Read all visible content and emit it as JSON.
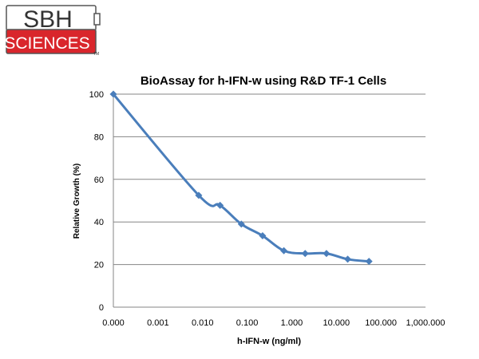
{
  "logo": {
    "line1": "SBH",
    "line2": "SCIENCES",
    "trademark": "TM",
    "brand_color": "#d9262c"
  },
  "chart_data": {
    "type": "line",
    "title": "BioAssay for h-IFN-w using R&D TF-1 Cells",
    "xlabel": "h-IFN-w (ng/ml)",
    "ylabel": "Relative Growth (%)",
    "x_scale": "log",
    "x_tick_labels": [
      "0.000",
      "0.001",
      "0.010",
      "0.100",
      "1.000",
      "10.000",
      "100.000",
      "1,000.000"
    ],
    "y_ticks": [
      0,
      20,
      40,
      60,
      80,
      100
    ],
    "ylim": [
      0,
      100
    ],
    "grid": "horizontal",
    "series": [
      {
        "color": "#4a7ebb",
        "marker": "diamond",
        "points": [
          {
            "x": 0.0001,
            "y": 100
          },
          {
            "x": 0.0082,
            "y": 52.5
          },
          {
            "x": 0.0247,
            "y": 47.8
          },
          {
            "x": 0.0741,
            "y": 39
          },
          {
            "x": 0.222,
            "y": 33.5
          },
          {
            "x": 0.667,
            "y": 26.5
          },
          {
            "x": 2.0,
            "y": 25.2
          },
          {
            "x": 6.0,
            "y": 25.2
          },
          {
            "x": 18.0,
            "y": 22.5
          },
          {
            "x": 54.0,
            "y": 21.5
          }
        ]
      }
    ]
  }
}
